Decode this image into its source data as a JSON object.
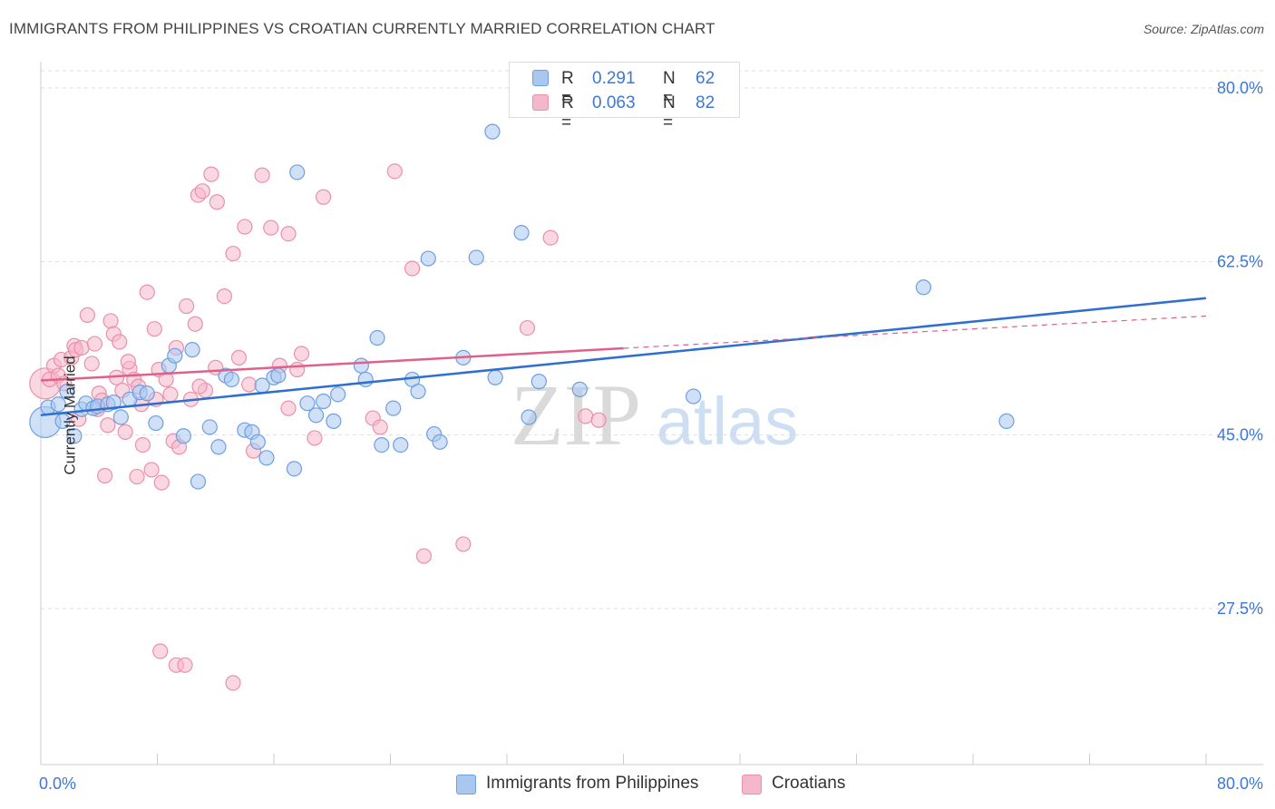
{
  "title": "IMMIGRANTS FROM PHILIPPINES VS CROATIAN CURRENTLY MARRIED CORRELATION CHART",
  "source": "Source: ZipAtlas.com",
  "watermark": {
    "zip": "ZIP",
    "atlas": "atlas"
  },
  "legend_top": [
    {
      "r_label": "R =",
      "r_value": "0.291",
      "n_label": "N =",
      "n_value": "62"
    },
    {
      "r_label": "R =",
      "r_value": "0.063",
      "n_label": "N =",
      "n_value": "82"
    }
  ],
  "legend_bottom": [
    {
      "label": "Immigrants from Philippines"
    },
    {
      "label": "Croatians"
    }
  ],
  "colors": {
    "blue_fill": "#a9c8f0",
    "blue_stroke": "#6e9fe0",
    "blue_line": "#2f6fcf",
    "pink_fill": "#f5b8cb",
    "pink_stroke": "#ec8fac",
    "pink_line": "#e0608a",
    "tick_label": "#3b78d8",
    "grid": "#dddddd"
  },
  "chart_data": {
    "type": "scatter",
    "title": "IMMIGRANTS FROM PHILIPPINES VS CROATIAN CURRENTLY MARRIED CORRELATION CHART",
    "xlabel": "",
    "ylabel": "Currently Married",
    "xlim": [
      0,
      80
    ],
    "ylim": [
      10,
      83
    ],
    "x_tick_labels": [
      "0.0%",
      "80.0%"
    ],
    "y_ticks": [
      27.5,
      45.0,
      62.5,
      80.0
    ],
    "y_tick_labels": [
      "27.5%",
      "45.0%",
      "62.5%",
      "80.0%"
    ],
    "grid": "horizontal dashed",
    "legend_position": "top-center",
    "series": [
      {
        "name": "Immigrants from Philippines",
        "color": "#a9c8f0",
        "r": 0.291,
        "n": 62,
        "trend": {
          "x": [
            0,
            80
          ],
          "y": [
            47.0,
            58.8
          ],
          "solid_to": 80
        },
        "points": [
          [
            0.3,
            46.3
          ],
          [
            0.5,
            47.8
          ],
          [
            1.2,
            48.1
          ],
          [
            1.5,
            46.4
          ],
          [
            1.8,
            49.4
          ],
          [
            2.3,
            44.9
          ],
          [
            2.8,
            47.6
          ],
          [
            3.1,
            48.2
          ],
          [
            3.6,
            47.7
          ],
          [
            3.9,
            47.9
          ],
          [
            4.6,
            48.1
          ],
          [
            5.0,
            48.3
          ],
          [
            5.5,
            46.8
          ],
          [
            6.1,
            48.6
          ],
          [
            6.8,
            49.3
          ],
          [
            7.3,
            49.2
          ],
          [
            7.9,
            46.2
          ],
          [
            8.8,
            52.0
          ],
          [
            9.2,
            53.0
          ],
          [
            9.8,
            44.9
          ],
          [
            10.4,
            53.6
          ],
          [
            10.8,
            40.3
          ],
          [
            11.6,
            45.8
          ],
          [
            12.2,
            43.8
          ],
          [
            12.7,
            51.0
          ],
          [
            13.1,
            50.6
          ],
          [
            14.0,
            45.5
          ],
          [
            14.5,
            45.3
          ],
          [
            14.9,
            44.3
          ],
          [
            15.2,
            50.0
          ],
          [
            15.5,
            42.7
          ],
          [
            16.0,
            50.8
          ],
          [
            16.3,
            51.0
          ],
          [
            17.4,
            41.6
          ],
          [
            17.6,
            71.5
          ],
          [
            18.3,
            48.2
          ],
          [
            18.9,
            47.0
          ],
          [
            19.4,
            48.4
          ],
          [
            20.1,
            46.4
          ],
          [
            20.4,
            49.1
          ],
          [
            22.0,
            52.0
          ],
          [
            22.3,
            50.6
          ],
          [
            23.1,
            54.8
          ],
          [
            23.4,
            44.0
          ],
          [
            24.2,
            47.7
          ],
          [
            24.7,
            44.0
          ],
          [
            25.5,
            50.6
          ],
          [
            25.9,
            49.4
          ],
          [
            26.6,
            62.8
          ],
          [
            27.0,
            45.1
          ],
          [
            27.4,
            44.3
          ],
          [
            29.0,
            52.8
          ],
          [
            29.9,
            62.9
          ],
          [
            31.0,
            75.6
          ],
          [
            31.2,
            50.8
          ],
          [
            33.0,
            65.4
          ],
          [
            33.5,
            46.8
          ],
          [
            34.2,
            50.4
          ],
          [
            44.8,
            48.9
          ],
          [
            60.6,
            59.9
          ],
          [
            66.3,
            46.4
          ],
          [
            37.0,
            49.6
          ]
        ]
      },
      {
        "name": "Croatians",
        "color": "#f5b8cb",
        "r": 0.063,
        "n": 82,
        "trend": {
          "x": [
            0,
            80
          ],
          "y": [
            50.5,
            57.0
          ],
          "solid_to": 40
        },
        "points": [
          [
            0.3,
            50.2
          ],
          [
            0.6,
            50.6
          ],
          [
            0.9,
            52.0
          ],
          [
            1.2,
            51.0
          ],
          [
            1.4,
            52.6
          ],
          [
            1.6,
            50.2
          ],
          [
            2.1,
            52.8
          ],
          [
            2.3,
            54.0
          ],
          [
            2.4,
            53.6
          ],
          [
            2.6,
            46.6
          ],
          [
            2.8,
            53.8
          ],
          [
            3.2,
            57.1
          ],
          [
            3.5,
            52.2
          ],
          [
            3.7,
            54.2
          ],
          [
            3.9,
            47.6
          ],
          [
            4.0,
            49.2
          ],
          [
            4.2,
            48.5
          ],
          [
            4.6,
            46.0
          ],
          [
            4.8,
            56.5
          ],
          [
            5.0,
            55.2
          ],
          [
            5.2,
            50.8
          ],
          [
            5.4,
            54.4
          ],
          [
            5.6,
            49.5
          ],
          [
            5.8,
            45.3
          ],
          [
            6.1,
            51.7
          ],
          [
            6.4,
            50.6
          ],
          [
            6.7,
            49.9
          ],
          [
            6.9,
            48.1
          ],
          [
            7.0,
            44.0
          ],
          [
            7.3,
            59.4
          ],
          [
            7.6,
            41.5
          ],
          [
            7.8,
            55.7
          ],
          [
            8.1,
            51.6
          ],
          [
            8.3,
            40.2
          ],
          [
            8.6,
            50.6
          ],
          [
            8.9,
            49.1
          ],
          [
            9.1,
            44.4
          ],
          [
            9.3,
            53.8
          ],
          [
            9.5,
            43.8
          ],
          [
            10.0,
            58.0
          ],
          [
            10.3,
            48.6
          ],
          [
            10.6,
            56.2
          ],
          [
            10.8,
            69.2
          ],
          [
            11.1,
            69.6
          ],
          [
            11.3,
            49.5
          ],
          [
            11.7,
            71.3
          ],
          [
            12.1,
            68.5
          ],
          [
            12.6,
            59.0
          ],
          [
            13.2,
            63.3
          ],
          [
            13.6,
            52.8
          ],
          [
            14.0,
            66.0
          ],
          [
            14.3,
            50.1
          ],
          [
            14.6,
            43.4
          ],
          [
            15.2,
            71.2
          ],
          [
            15.8,
            65.9
          ],
          [
            16.4,
            52.0
          ],
          [
            17.0,
            65.3
          ],
          [
            17.6,
            51.6
          ],
          [
            17.9,
            53.2
          ],
          [
            18.8,
            44.7
          ],
          [
            19.4,
            69.0
          ],
          [
            22.8,
            46.7
          ],
          [
            23.3,
            45.8
          ],
          [
            24.3,
            71.6
          ],
          [
            25.5,
            61.8
          ],
          [
            26.3,
            32.8
          ],
          [
            29.0,
            34.0
          ],
          [
            33.4,
            55.8
          ],
          [
            35.0,
            64.9
          ],
          [
            37.4,
            46.9
          ],
          [
            38.3,
            46.5
          ],
          [
            8.2,
            23.2
          ],
          [
            9.3,
            21.8
          ],
          [
            9.9,
            21.8
          ],
          [
            13.2,
            20.0
          ],
          [
            6.6,
            40.8
          ],
          [
            17.0,
            47.7
          ],
          [
            10.9,
            49.9
          ],
          [
            7.9,
            48.6
          ],
          [
            4.4,
            40.9
          ],
          [
            6.0,
            52.4
          ],
          [
            12.0,
            51.8
          ]
        ]
      }
    ]
  }
}
